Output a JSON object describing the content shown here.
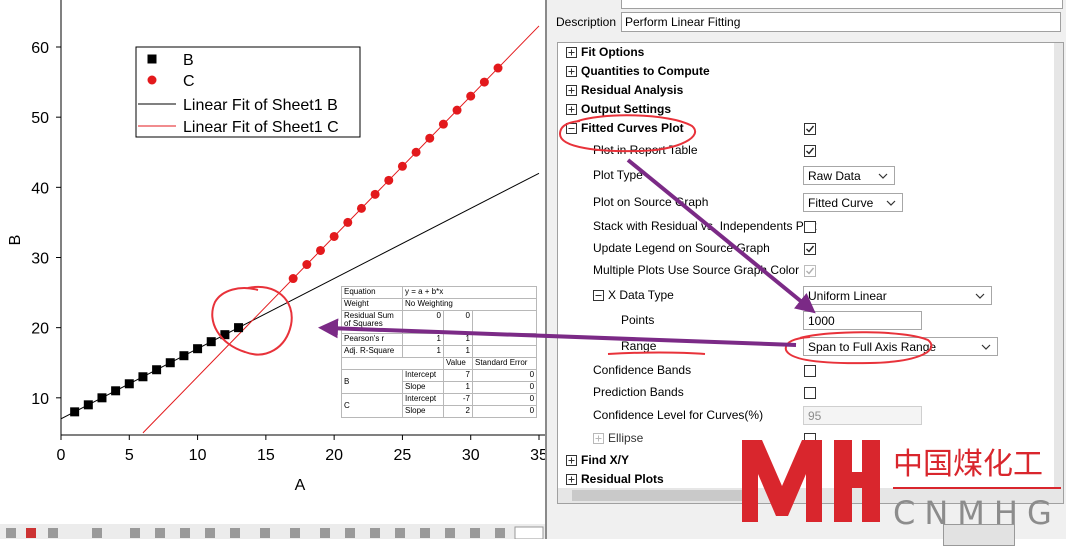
{
  "chart": {
    "type": "scatter",
    "xlabel": "A",
    "ylabel": "B",
    "xlim": [
      0,
      35
    ],
    "ylim": [
      4.7,
      66.7
    ],
    "xticks": [
      0,
      5,
      10,
      15,
      20,
      25,
      30,
      35
    ],
    "yticks": [
      10,
      20,
      30,
      40,
      50,
      60
    ],
    "legend": "upper-left",
    "series": [
      {
        "name": "B",
        "type": "scatter",
        "marker": "square",
        "color": "#000000",
        "x": [
          1,
          2,
          3,
          4,
          5,
          6,
          7,
          8,
          9,
          10,
          11,
          12,
          13
        ],
        "values": [
          8,
          9,
          10,
          11,
          12,
          13,
          14,
          15,
          16,
          17,
          18,
          19,
          20
        ]
      },
      {
        "name": "C",
        "type": "scatter",
        "marker": "circle",
        "color": "#e3191c",
        "x": [
          17,
          18,
          19,
          20,
          21,
          22,
          23,
          24,
          25,
          26,
          27,
          28,
          29,
          30,
          31,
          32
        ],
        "values": [
          27,
          29,
          31,
          33,
          35,
          37,
          39,
          41,
          43,
          45,
          47,
          49,
          51,
          53,
          55,
          57
        ]
      },
      {
        "name": "Linear Fit of Sheet1 B",
        "type": "line",
        "color": "#000000",
        "x": [
          0,
          35
        ],
        "values": [
          7,
          42
        ]
      },
      {
        "name": "Linear Fit of Sheet1 C",
        "type": "line",
        "color": "#e3191c",
        "x": [
          6,
          35
        ],
        "values": [
          5,
          63
        ]
      }
    ]
  },
  "report_table": {
    "rows": [
      [
        "Equation",
        "y = a + b*x"
      ],
      [
        "Weight",
        "No Weighting"
      ],
      [
        "Residual Sum of Squares",
        0,
        0
      ],
      [
        "Pearson's r",
        1,
        1
      ],
      [
        "Adj. R-Square",
        1,
        1
      ],
      [
        "Value",
        "Standard Error"
      ],
      [
        "B",
        "Intercept",
        7,
        0
      ],
      [
        "Slope",
        1,
        0
      ],
      [
        "C",
        "Intercept",
        -7,
        0
      ],
      [
        "Slope",
        2,
        0
      ]
    ]
  },
  "dialog": {
    "description_label": "Description",
    "description": "Perform Linear Fitting",
    "items": [
      {
        "label": "Fit Options",
        "level": 0,
        "expander": "collapsed",
        "bold": true
      },
      {
        "label": "Quantities to Compute",
        "level": 0,
        "expander": "collapsed",
        "bold": true
      },
      {
        "label": "Residual Analysis",
        "level": 0,
        "expander": "collapsed",
        "bold": true
      },
      {
        "label": "Output Settings",
        "level": 0,
        "expander": "collapsed",
        "bold": true
      },
      {
        "label": "Fitted Curves Plot",
        "level": 0,
        "expander": "expanded",
        "bold": true,
        "control": {
          "type": "checkbox",
          "checked": true
        }
      },
      {
        "label": "Plot in Report Table",
        "level": 1,
        "control": {
          "type": "checkbox",
          "checked": true
        }
      },
      {
        "label": "Plot Type",
        "level": 1,
        "control": {
          "type": "select",
          "value": "Raw Data"
        }
      },
      {
        "label": "Plot on Source Graph",
        "level": 1,
        "control": {
          "type": "select",
          "value": "Fitted Curve"
        }
      },
      {
        "label": "Stack with Residual vs. Independents Plot",
        "level": 1,
        "control": {
          "type": "checkbox",
          "checked": false
        }
      },
      {
        "label": "Update Legend on Source Graph",
        "level": 1,
        "control": {
          "type": "checkbox",
          "checked": true
        }
      },
      {
        "label": "Multiple Plots Use Source Graph Color",
        "level": 1,
        "control": {
          "type": "checkbox",
          "checked": true,
          "disabled": true
        }
      },
      {
        "label": "X Data Type",
        "level": 1,
        "expander": "expanded",
        "control": {
          "type": "select",
          "value": "Uniform Linear"
        }
      },
      {
        "label": "Points",
        "level": 2,
        "control": {
          "type": "input",
          "value": "1000"
        }
      },
      {
        "label": "Range",
        "level": 2,
        "control": {
          "type": "select",
          "value": "Span to Full Axis Range"
        }
      },
      {
        "label": "Confidence Bands",
        "level": 1,
        "control": {
          "type": "checkbox",
          "checked": false
        }
      },
      {
        "label": "Prediction Bands",
        "level": 1,
        "control": {
          "type": "checkbox",
          "checked": false
        }
      },
      {
        "label": "Confidence Level for Curves(%)",
        "level": 1,
        "control": {
          "type": "input",
          "value": "95",
          "disabled": true
        }
      },
      {
        "label": "Ellipse",
        "level": 1,
        "expander": "collapsed",
        "disabled": true,
        "control": {
          "type": "checkbox",
          "checked": false
        }
      },
      {
        "label": "Find X/Y",
        "level": 0,
        "expander": "collapsed",
        "bold": true
      },
      {
        "label": "Residual Plots",
        "level": 0,
        "expander": "collapsed",
        "bold": true
      }
    ]
  },
  "watermark": {
    "name": "中国煤化工",
    "code": "CNMHG"
  }
}
